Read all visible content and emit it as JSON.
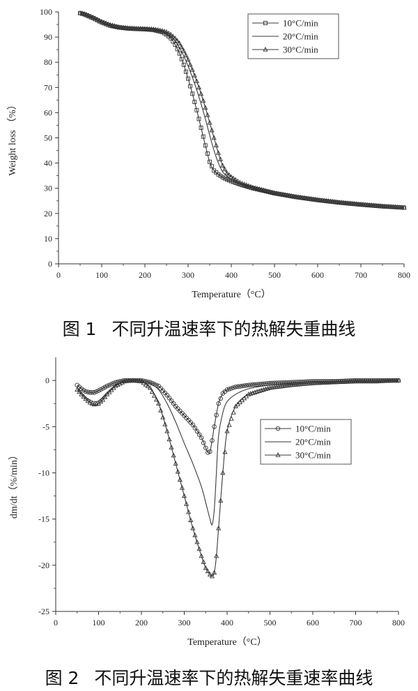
{
  "captions": {
    "fig1_label": "图 1",
    "fig1_text": "不同升温速率下的热解失重曲线",
    "fig2_label": "图 2",
    "fig2_text": "不同升温速率下的热解失重速率曲线"
  },
  "chart_data": [
    {
      "type": "line",
      "title": "",
      "xlabel": "Temperature（°C）",
      "ylabel": "Weight loss （%）",
      "xlim": [
        0,
        800
      ],
      "ylim": [
        0,
        100
      ],
      "xticks": [
        0,
        100,
        200,
        300,
        400,
        500,
        600,
        700,
        800
      ],
      "yticks": [
        0,
        10,
        20,
        30,
        40,
        50,
        60,
        70,
        80,
        90,
        100
      ],
      "grid": false,
      "legend_position": "top-right",
      "series": [
        {
          "name": "10°C/min",
          "marker": "square",
          "x": [
            50,
            60,
            80,
            100,
            120,
            140,
            160,
            180,
            200,
            220,
            240,
            250,
            260,
            270,
            280,
            290,
            300,
            310,
            320,
            330,
            340,
            350,
            360,
            370,
            380,
            390,
            400,
            420,
            450,
            500,
            550,
            600,
            650,
            700,
            750,
            800
          ],
          "y": [
            99.5,
            99.0,
            97.5,
            95.8,
            94.5,
            93.8,
            93.4,
            93.2,
            93.1,
            92.8,
            92.0,
            91.0,
            89.5,
            87.0,
            83.5,
            79.0,
            73.5,
            67.5,
            61.0,
            54.0,
            47.0,
            40.5,
            37.0,
            35.5,
            34.3,
            33.5,
            32.8,
            31.5,
            30.0,
            28.0,
            26.5,
            25.3,
            24.3,
            23.5,
            22.8,
            22.3
          ]
        },
        {
          "name": "20°C/min",
          "marker": "none",
          "x": [
            50,
            60,
            80,
            100,
            120,
            140,
            160,
            180,
            200,
            220,
            240,
            250,
            260,
            270,
            280,
            290,
            300,
            310,
            320,
            330,
            340,
            350,
            360,
            370,
            380,
            390,
            400,
            420,
            450,
            500,
            550,
            600,
            650,
            700,
            750,
            800
          ],
          "y": [
            99.5,
            99.1,
            97.6,
            95.9,
            94.6,
            93.9,
            93.5,
            93.3,
            93.2,
            92.9,
            92.2,
            91.5,
            90.3,
            88.5,
            85.8,
            82.5,
            78.5,
            74.0,
            69.0,
            63.5,
            57.5,
            51.0,
            45.0,
            40.0,
            36.5,
            34.8,
            33.5,
            31.8,
            30.1,
            28.0,
            26.5,
            25.3,
            24.3,
            23.5,
            22.8,
            22.2
          ]
        },
        {
          "name": "30°C/min",
          "marker": "triangle",
          "x": [
            50,
            60,
            80,
            100,
            120,
            140,
            160,
            180,
            200,
            220,
            240,
            250,
            260,
            270,
            280,
            290,
            300,
            310,
            320,
            330,
            340,
            350,
            360,
            370,
            380,
            390,
            400,
            420,
            450,
            500,
            550,
            600,
            650,
            700,
            750,
            800
          ],
          "y": [
            99.5,
            99.2,
            97.8,
            96.1,
            94.8,
            94.0,
            93.6,
            93.4,
            93.3,
            93.1,
            92.5,
            92.0,
            91.0,
            89.5,
            87.5,
            84.5,
            81.0,
            77.0,
            72.5,
            67.5,
            62.0,
            56.0,
            50.0,
            44.0,
            39.0,
            36.0,
            34.5,
            32.2,
            30.3,
            28.1,
            26.6,
            25.4,
            24.4,
            23.6,
            22.9,
            22.3
          ]
        }
      ]
    },
    {
      "type": "line",
      "title": "",
      "xlabel": "Temperature（°C）",
      "ylabel": "dm/dt（%/min）",
      "xlim": [
        0,
        800
      ],
      "ylim": [
        -25,
        2.5
      ],
      "xticks": [
        0,
        100,
        200,
        300,
        400,
        500,
        600,
        700,
        800
      ],
      "yticks": [
        0,
        -5,
        -10,
        -15,
        -20,
        -25
      ],
      "grid": false,
      "legend_position": "center-right",
      "series": [
        {
          "name": "10°C/min",
          "marker": "circle",
          "x": [
            50,
            60,
            70,
            80,
            90,
            100,
            120,
            140,
            160,
            180,
            200,
            220,
            240,
            260,
            280,
            300,
            320,
            340,
            350,
            355,
            360,
            365,
            370,
            380,
            390,
            400,
            420,
            450,
            500,
            550,
            600,
            650,
            700,
            750,
            800
          ],
          "y": [
            -0.5,
            -0.9,
            -1.2,
            -1.3,
            -1.3,
            -1.1,
            -0.6,
            -0.2,
            0.0,
            0.0,
            0.0,
            -0.2,
            -0.6,
            -1.6,
            -2.8,
            -3.8,
            -4.8,
            -6.2,
            -7.3,
            -7.8,
            -7.7,
            -6.5,
            -5.0,
            -2.5,
            -1.4,
            -1.0,
            -0.7,
            -0.5,
            -0.3,
            -0.2,
            -0.1,
            -0.1,
            0.0,
            0.0,
            0.0
          ]
        },
        {
          "name": "20°C/min",
          "marker": "none",
          "x": [
            50,
            60,
            70,
            80,
            90,
            100,
            110,
            120,
            140,
            160,
            180,
            200,
            220,
            240,
            260,
            280,
            300,
            320,
            340,
            350,
            360,
            365,
            370,
            375,
            380,
            390,
            400,
            420,
            450,
            500,
            550,
            600,
            650,
            700,
            750,
            800
          ],
          "y": [
            -0.8,
            -1.3,
            -1.8,
            -2.1,
            -2.3,
            -2.2,
            -1.8,
            -1.3,
            -0.5,
            -0.1,
            0.0,
            0.0,
            -0.3,
            -1.0,
            -2.5,
            -4.5,
            -6.8,
            -9.0,
            -11.5,
            -13.2,
            -15.0,
            -15.6,
            -14.0,
            -10.0,
            -6.0,
            -3.5,
            -2.3,
            -1.5,
            -0.9,
            -0.5,
            -0.3,
            -0.2,
            -0.1,
            -0.1,
            0.0,
            0.0
          ]
        },
        {
          "name": "30°C/min",
          "marker": "triangle",
          "x": [
            50,
            60,
            70,
            80,
            90,
            100,
            110,
            120,
            140,
            160,
            180,
            200,
            220,
            240,
            260,
            280,
            300,
            320,
            340,
            350,
            360,
            365,
            370,
            375,
            380,
            390,
            400,
            420,
            450,
            500,
            550,
            600,
            650,
            700,
            750,
            800
          ],
          "y": [
            -1.0,
            -1.5,
            -2.0,
            -2.4,
            -2.6,
            -2.5,
            -2.1,
            -1.5,
            -0.6,
            -0.1,
            0.0,
            -0.1,
            -0.8,
            -2.5,
            -5.5,
            -9.0,
            -12.5,
            -16.0,
            -19.0,
            -20.3,
            -21.0,
            -21.2,
            -20.8,
            -19.0,
            -16.0,
            -10.0,
            -5.5,
            -2.8,
            -1.5,
            -0.8,
            -0.5,
            -0.3,
            -0.2,
            -0.1,
            -0.1,
            0.0
          ]
        }
      ]
    }
  ]
}
